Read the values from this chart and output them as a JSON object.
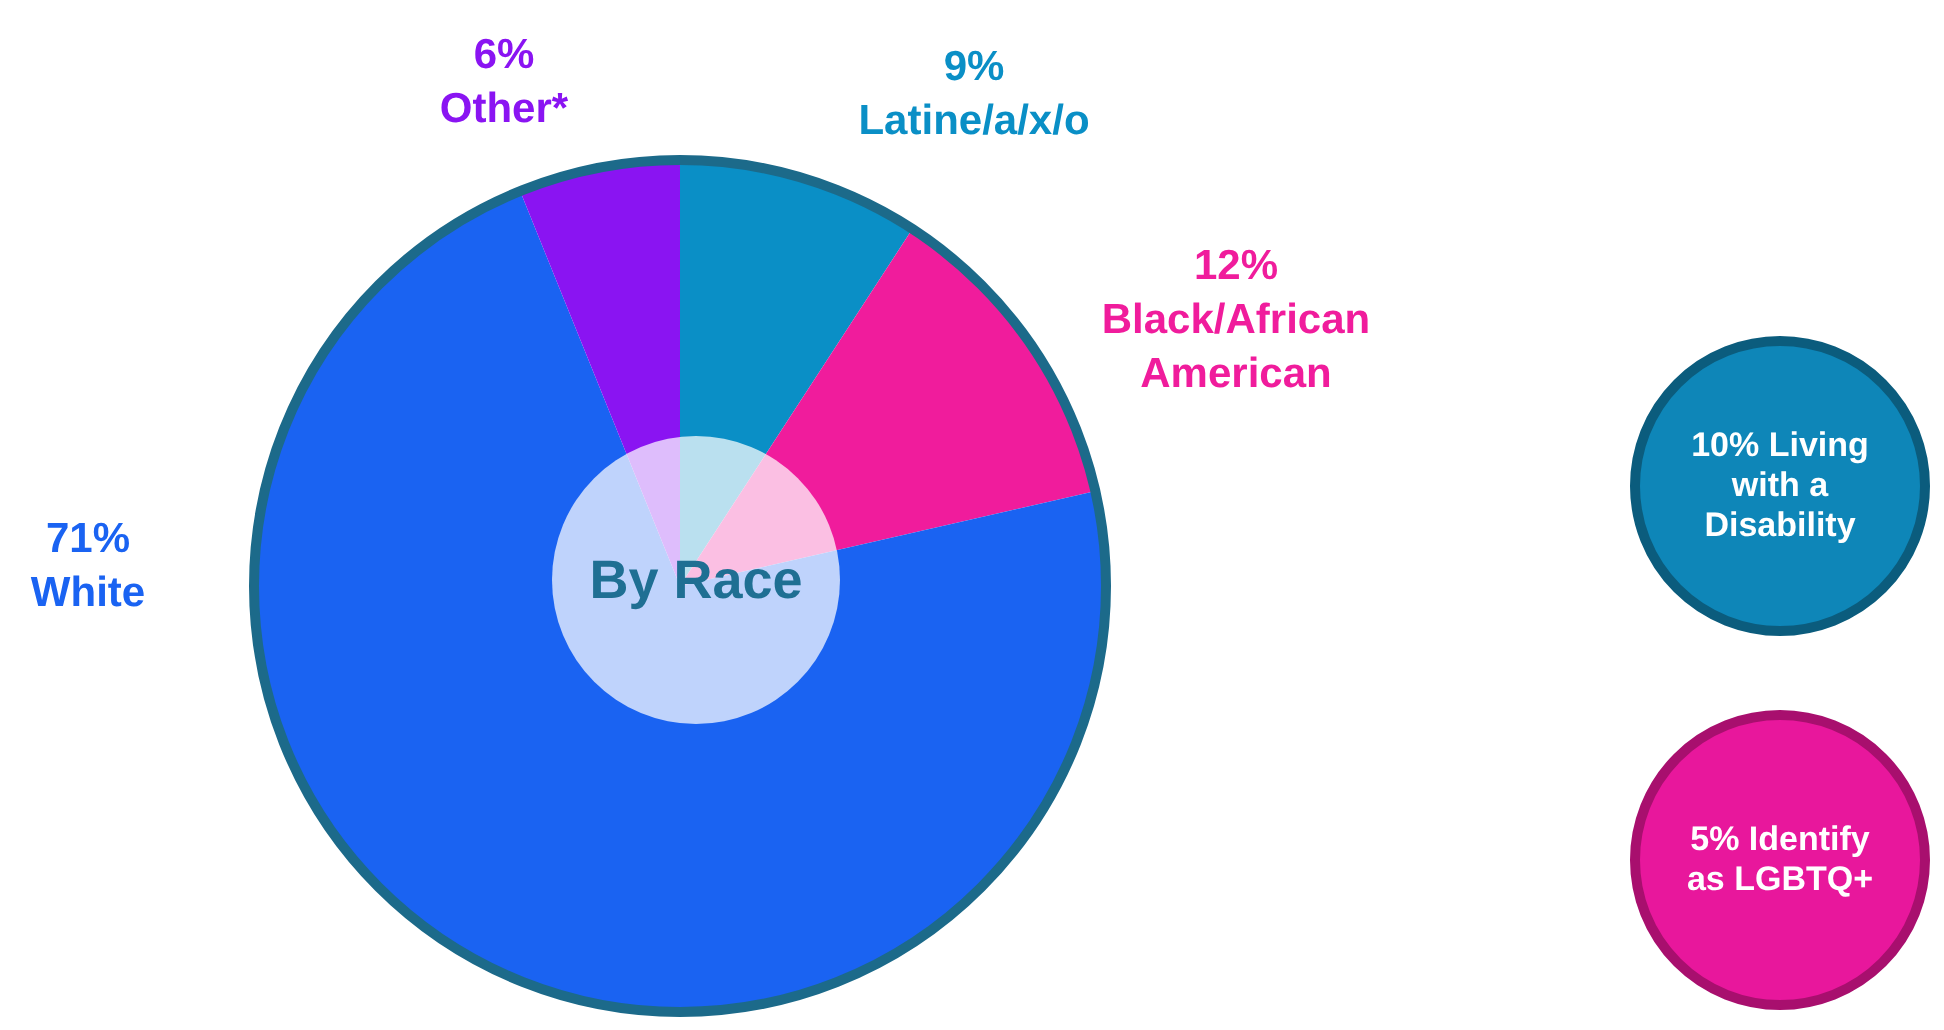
{
  "chart_data": {
    "type": "pie",
    "title": "By Race",
    "categories": [
      "Latine/a/x/o",
      "Black/African American",
      "White",
      "Other*"
    ],
    "values": [
      9,
      12,
      71,
      6
    ],
    "value_labels": [
      "9%",
      "12%",
      "71%",
      "6%"
    ],
    "colors": [
      "#0a8fc6",
      "#f01c9c",
      "#1a63f2",
      "#8a14f2"
    ],
    "legend": false,
    "annotations": [
      "10% Living with a Disability",
      "5% Identify as LGBTQ+"
    ]
  }
}
